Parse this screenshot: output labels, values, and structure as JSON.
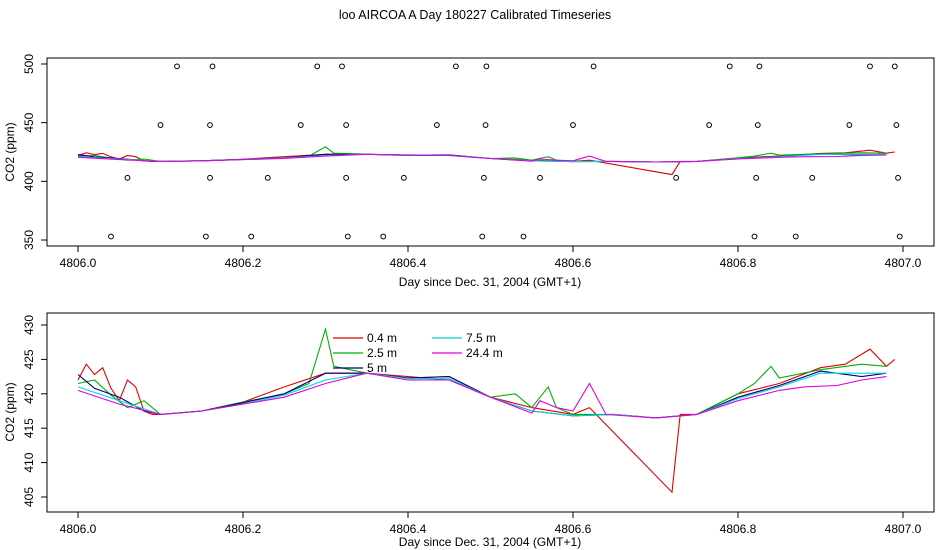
{
  "title": "loo AIRCOA A  Day 180227  Calibrated Timeseries",
  "colors": {
    "0.4 m": "#e00000",
    "2.5 m": "#00b000",
    "5 m": "#000080",
    "7.5 m": "#00d8d8",
    "24.4 m": "#e000e0"
  },
  "chart_data": [
    {
      "type": "line",
      "panel": "top",
      "xlabel": "Day since Dec. 31, 2004 (GMT+1)",
      "ylabel": "CO2 (ppm)",
      "xlim": [
        4806.0,
        4807.0
      ],
      "ylim": [
        350,
        500
      ],
      "xticks": [
        "4806.0",
        "4806.2",
        "4806.4",
        "4806.6",
        "4806.8",
        "4807.0"
      ],
      "yticks": [
        "350",
        "400",
        "450",
        "500"
      ],
      "scatter_points": [
        [
          4806.04,
          353
        ],
        [
          4806.06,
          403
        ],
        [
          4806.1,
          448
        ],
        [
          4806.12,
          498
        ],
        [
          4806.155,
          353
        ],
        [
          4806.16,
          403
        ],
        [
          4806.16,
          448
        ],
        [
          4806.163,
          498
        ],
        [
          4806.21,
          353
        ],
        [
          4806.23,
          403
        ],
        [
          4806.27,
          448
        ],
        [
          4806.29,
          498
        ],
        [
          4806.32,
          498
        ],
        [
          4806.325,
          448
        ],
        [
          4806.325,
          403
        ],
        [
          4806.327,
          353
        ],
        [
          4806.37,
          353
        ],
        [
          4806.395,
          403
        ],
        [
          4806.435,
          448
        ],
        [
          4806.458,
          498
        ],
        [
          4806.49,
          353
        ],
        [
          4806.492,
          403
        ],
        [
          4806.494,
          448
        ],
        [
          4806.495,
          498
        ],
        [
          4806.54,
          353
        ],
        [
          4806.56,
          403
        ],
        [
          4806.6,
          448
        ],
        [
          4806.625,
          498
        ],
        [
          4806.725,
          403
        ],
        [
          4806.765,
          448
        ],
        [
          4806.79,
          498
        ],
        [
          4806.82,
          353
        ],
        [
          4806.822,
          403
        ],
        [
          4806.824,
          448
        ],
        [
          4806.826,
          498
        ],
        [
          4806.87,
          353
        ],
        [
          4806.89,
          403
        ],
        [
          4806.935,
          448
        ],
        [
          4806.96,
          498
        ],
        [
          4806.99,
          498
        ],
        [
          4806.992,
          448
        ],
        [
          4806.994,
          403
        ],
        [
          4806.996,
          353
        ]
      ],
      "series": [
        {
          "name": "0.4 m",
          "x": [
            4806.0,
            4806.01,
            4806.02,
            4806.03,
            4806.04,
            4806.05,
            4806.06,
            4806.07,
            4806.08,
            4806.09,
            4806.1,
            4806.15,
            4806.2,
            4806.25,
            4806.3,
            4806.35,
            4806.4,
            4806.45,
            4806.5,
            4806.55,
            4806.6,
            4806.62,
            4806.72,
            4806.73,
            4806.75,
            4806.8,
            4806.85,
            4806.9,
            4806.93,
            4806.96,
            4806.98,
            4806.99
          ],
          "y": [
            422,
            424.3,
            422.8,
            423.8,
            420.8,
            419,
            422,
            421,
            417.5,
            417,
            417,
            417.5,
            418.8,
            421,
            423,
            423,
            422.5,
            422,
            419.5,
            418,
            417,
            418,
            405.7,
            417,
            417,
            420,
            421.5,
            423.8,
            424.3,
            426.5,
            424,
            425
          ]
        },
        {
          "name": "2.5 m",
          "x": [
            4806.0,
            4806.02,
            4806.04,
            4806.06,
            4806.08,
            4806.1,
            4806.15,
            4806.2,
            4806.25,
            4806.28,
            4806.3,
            4806.31,
            4806.35,
            4806.4,
            4806.45,
            4806.5,
            4806.53,
            4806.55,
            4806.57,
            4806.58,
            4806.6,
            4806.65,
            4806.7,
            4806.75,
            4806.8,
            4806.82,
            4806.84,
            4806.85,
            4806.9,
            4806.95,
            4806.98
          ],
          "y": [
            421.5,
            422,
            419.8,
            418,
            419,
            417,
            417.5,
            418.8,
            420,
            421.5,
            429.4,
            424,
            423,
            422.3,
            422.5,
            419.5,
            420,
            418,
            421,
            418,
            417,
            417,
            416.5,
            417,
            420,
            421.5,
            424,
            422.3,
            423.5,
            424.3,
            424
          ]
        },
        {
          "name": "5 m",
          "x": [
            4806.0,
            4806.02,
            4806.05,
            4806.08,
            4806.1,
            4806.15,
            4806.2,
            4806.25,
            4806.3,
            4806.35,
            4806.4,
            4806.45,
            4806.5,
            4806.55,
            4806.6,
            4806.65,
            4806.7,
            4806.75,
            4806.8,
            4806.85,
            4806.9,
            4806.95,
            4806.98
          ],
          "y": [
            422.8,
            420.8,
            419.5,
            417.5,
            417,
            417.5,
            418.7,
            420,
            423,
            423,
            422.3,
            422.5,
            419.5,
            417.5,
            416.8,
            417,
            416.5,
            417,
            419.5,
            421.2,
            423.3,
            422.5,
            423
          ]
        },
        {
          "name": "7.5 m",
          "x": [
            4806.0,
            4806.05,
            4806.1,
            4806.15,
            4806.2,
            4806.25,
            4806.3,
            4806.35,
            4806.4,
            4806.45,
            4806.5,
            4806.55,
            4806.6,
            4806.65,
            4806.7,
            4806.75,
            4806.8,
            4806.85,
            4806.9,
            4806.95,
            4806.98
          ],
          "y": [
            421,
            419,
            417,
            417.5,
            418.5,
            419.8,
            422,
            423,
            422.2,
            422.2,
            419.5,
            417.5,
            416.8,
            417,
            416.5,
            417,
            419.3,
            421,
            423,
            423,
            423
          ]
        },
        {
          "name": "24.4 m",
          "x": [
            4806.0,
            4806.05,
            4806.1,
            4806.15,
            4806.2,
            4806.25,
            4806.3,
            4806.35,
            4806.4,
            4806.45,
            4806.5,
            4806.55,
            4806.56,
            4806.58,
            4806.6,
            4806.62,
            4806.64,
            4806.7,
            4806.75,
            4806.8,
            4806.85,
            4806.88,
            4806.92,
            4806.95,
            4806.98
          ],
          "y": [
            420.5,
            418.5,
            417,
            417.5,
            418.5,
            419.5,
            421.5,
            423,
            422,
            422,
            419.5,
            417.2,
            419,
            418,
            417.5,
            421.5,
            417,
            416.5,
            417,
            419,
            420.5,
            421,
            421.2,
            422,
            422.5
          ]
        }
      ]
    },
    {
      "type": "line",
      "panel": "bottom",
      "xlabel": "Day since Dec. 31, 2004 (GMT+1)",
      "ylabel": "CO2 (ppm)",
      "xlim": [
        4806.0,
        4807.0
      ],
      "ylim": [
        405,
        430
      ],
      "xticks": [
        "4806.0",
        "4806.2",
        "4806.4",
        "4806.6",
        "4806.8",
        "4807.0"
      ],
      "yticks": [
        "405",
        "410",
        "415",
        "420",
        "425",
        "430"
      ],
      "legend": {
        "placement": "top-center",
        "entries": [
          "0.4 m",
          "2.5 m",
          "5 m",
          "7.5 m",
          "24.4 m"
        ]
      }
    }
  ]
}
